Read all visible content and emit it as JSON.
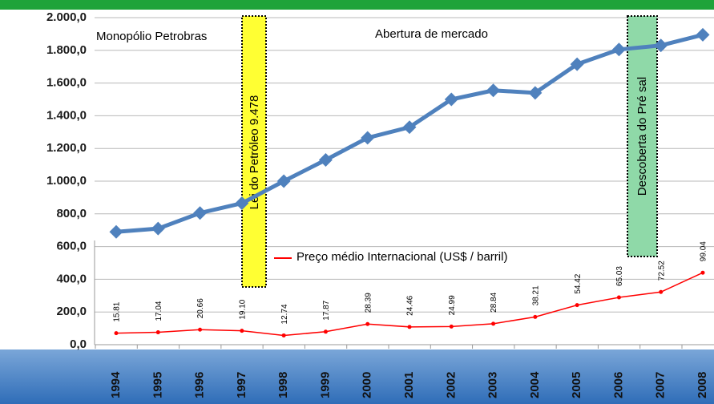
{
  "chart_data": {
    "type": "line",
    "categories": [
      "1994",
      "1995",
      "1996",
      "1997",
      "1998",
      "1999",
      "2000",
      "2001",
      "2002",
      "2003",
      "2004",
      "2005",
      "2006",
      "2007",
      "2008"
    ],
    "series": [
      {
        "color": "#4f81bd",
        "values": [
          690,
          710,
          805,
          865,
          1000,
          1130,
          1265,
          1330,
          1500,
          1555,
          1540,
          1715,
          1805,
          1830,
          1895
        ]
      },
      {
        "name": "Preço médio Internacional (US$ / barril)",
        "color": "#ff0000",
        "axis": "y2",
        "values": [
          15.81,
          17.04,
          20.66,
          19.1,
          12.74,
          17.87,
          28.39,
          24.46,
          24.99,
          28.84,
          38.21,
          54.42,
          65.03,
          72.52,
          99.04
        ],
        "value_labels": [
          "15.81",
          "17.04",
          "20.66",
          "19.10",
          "12.74",
          "17.87",
          "28.39",
          "24.46",
          "24.99",
          "28.84",
          "38.21",
          "54.42",
          "65.03",
          "72.52",
          "99.04"
        ]
      }
    ],
    "ylim": [
      0,
      2000
    ],
    "yticks": [
      {
        "value": 0,
        "label": "0,0"
      },
      {
        "value": 200,
        "label": "200,0"
      },
      {
        "value": 400,
        "label": "400,0"
      },
      {
        "value": 600,
        "label": "600,0"
      },
      {
        "value": 800,
        "label": "800,0"
      },
      {
        "value": 1000,
        "label": "1.000,0"
      },
      {
        "value": 1200,
        "label": "1.200,0"
      },
      {
        "value": 1400,
        "label": "1.400,0"
      },
      {
        "value": 1600,
        "label": "1.600,0"
      },
      {
        "value": 1800,
        "label": "1.800,0"
      },
      {
        "value": 2000,
        "label": "2.000,0"
      }
    ],
    "y2lim": [
      0,
      450
    ],
    "grid": true,
    "annotations": [
      "Monopólio Petrobras",
      "Abertura de mercado",
      "Lei do Petróleo 9.478",
      "Descoberta do Pré sal"
    ]
  }
}
